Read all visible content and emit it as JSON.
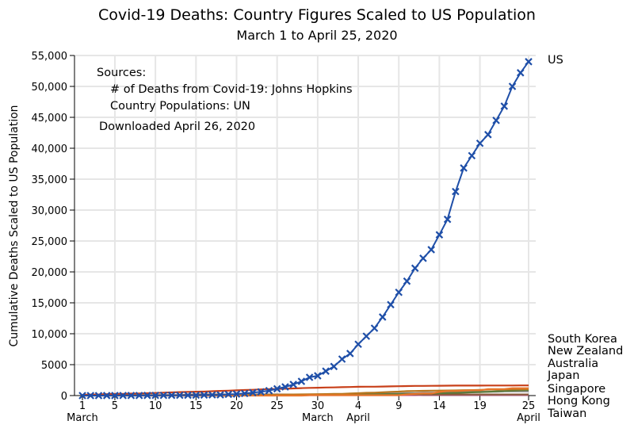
{
  "chart_data": {
    "type": "line",
    "title": "Covid-19 Deaths:  Country Figures Scaled to US Population",
    "subtitle": "March 1 to April 25, 2020",
    "xlabel": "",
    "ylabel": "Cumulative Deaths Scaled to US Population",
    "ylim": [
      0,
      55000
    ],
    "xlim_days": [
      1,
      56
    ],
    "grid": true,
    "y_ticks": [
      {
        "value": 0,
        "label": "0"
      },
      {
        "value": 5000,
        "label": "5000"
      },
      {
        "value": 10000,
        "label": "10,000"
      },
      {
        "value": 15000,
        "label": "15,000"
      },
      {
        "value": 20000,
        "label": "20,000"
      },
      {
        "value": 25000,
        "label": "25,000"
      },
      {
        "value": 30000,
        "label": "30,000"
      },
      {
        "value": 35000,
        "label": "35,000"
      },
      {
        "value": 40000,
        "label": "40,000"
      },
      {
        "value": 45000,
        "label": "45,000"
      },
      {
        "value": 50000,
        "label": "50,000"
      },
      {
        "value": 55000,
        "label": "55,000"
      }
    ],
    "x_ticks": [
      {
        "day": 1,
        "label": "1",
        "sublabel": "March"
      },
      {
        "day": 5,
        "label": "5",
        "sublabel": ""
      },
      {
        "day": 10,
        "label": "10",
        "sublabel": ""
      },
      {
        "day": 15,
        "label": "15",
        "sublabel": ""
      },
      {
        "day": 20,
        "label": "20",
        "sublabel": ""
      },
      {
        "day": 25,
        "label": "25",
        "sublabel": ""
      },
      {
        "day": 30,
        "label": "30",
        "sublabel": "March"
      },
      {
        "day": 35,
        "label": "4",
        "sublabel": "April"
      },
      {
        "day": 40,
        "label": "9",
        "sublabel": ""
      },
      {
        "day": 45,
        "label": "14",
        "sublabel": ""
      },
      {
        "day": 50,
        "label": "19",
        "sublabel": ""
      },
      {
        "day": 56,
        "label": "25",
        "sublabel": "April"
      }
    ],
    "annotations": {
      "sources_heading": "Sources:",
      "source_deaths": "# of Deaths from Covid-19:  Johns Hopkins",
      "source_population": "Country Populations:  UN",
      "downloaded": "Downloaded April 26, 2020"
    },
    "legend_placement": "right-end-labels",
    "series": [
      {
        "name": "US",
        "color": "#1f4fa8",
        "marker": "x",
        "values": [
          1,
          1,
          3,
          9,
          11,
          12,
          15,
          19,
          22,
          28,
          36,
          40,
          47,
          54,
          63,
          85,
          108,
          118,
          200,
          250,
          340,
          470,
          600,
          800,
          1100,
          1400,
          1800,
          2300,
          2950,
          3200,
          3950,
          4700,
          5900,
          6800,
          8300,
          9600,
          10900,
          12700,
          14700,
          16700,
          18500,
          20600,
          22200,
          23600,
          26000,
          28500,
          33000,
          36800,
          38800,
          40800,
          42200,
          44500,
          46800,
          50000,
          52200,
          54000
        ]
      },
      {
        "name": "South Korea",
        "color": "#c8401a",
        "marker": "none",
        "values": [
          110,
          170,
          180,
          225,
          270,
          280,
          320,
          350,
          380,
          420,
          480,
          510,
          560,
          600,
          630,
          640,
          700,
          750,
          800,
          850,
          900,
          940,
          1000,
          1050,
          1070,
          1100,
          1150,
          1200,
          1250,
          1270,
          1310,
          1320,
          1360,
          1390,
          1420,
          1430,
          1440,
          1460,
          1490,
          1510,
          1540,
          1560,
          1570,
          1580,
          1590,
          1600,
          1610,
          1610,
          1620,
          1620,
          1630,
          1630,
          1630,
          1630,
          1640,
          1640
        ]
      },
      {
        "name": "New Zealand",
        "color": "#e8762a",
        "marker": "none",
        "values": [
          0,
          0,
          0,
          0,
          0,
          0,
          0,
          0,
          0,
          0,
          0,
          0,
          0,
          0,
          0,
          0,
          0,
          0,
          0,
          0,
          0,
          0,
          0,
          0,
          0,
          0,
          0,
          0,
          66,
          66,
          66,
          66,
          66,
          66,
          66,
          66,
          66,
          66,
          66,
          66,
          198,
          264,
          330,
          330,
          594,
          726,
          726,
          792,
          858,
          858,
          1056,
          1056,
          1056,
          1188,
          1188,
          1188
        ]
      },
      {
        "name": "Australia",
        "color": "#b8761e",
        "marker": "none",
        "values": [
          13,
          13,
          13,
          13,
          26,
          26,
          26,
          39,
          39,
          39,
          39,
          39,
          39,
          65,
          65,
          65,
          65,
          65,
          78,
          78,
          91,
          91,
          91,
          104,
          117,
          169,
          182,
          195,
          208,
          234,
          247,
          273,
          286,
          351,
          390,
          455,
          468,
          520,
          598,
          637,
          715,
          741,
          767,
          793,
          806,
          819,
          832,
          871,
          884,
          923,
          962,
          975,
          988,
          1001,
          1014,
          1027
        ]
      },
      {
        "name": "Japan",
        "color": "#5a7a3a",
        "marker": "none",
        "values": [
          16,
          16,
          16,
          16,
          16,
          16,
          16,
          18,
          18,
          18,
          26,
          26,
          29,
          36,
          36,
          36,
          47,
          62,
          73,
          86,
          86,
          91,
          99,
          109,
          117,
          117,
          120,
          125,
          133,
          143,
          146,
          148,
          164,
          179,
          182,
          203,
          224,
          234,
          244,
          260,
          273,
          296,
          312,
          343,
          374,
          410,
          450,
          480,
          520,
          560,
          600,
          680,
          730,
          780,
          850,
          900
        ]
      },
      {
        "name": "Singapore",
        "color": "#8c8c8c",
        "marker": "none",
        "values": [
          0,
          0,
          0,
          0,
          0,
          0,
          0,
          0,
          0,
          0,
          0,
          0,
          0,
          0,
          0,
          0,
          0,
          0,
          0,
          0,
          114,
          114,
          114,
          114,
          114,
          114,
          114,
          114,
          171,
          171,
          171,
          171,
          171,
          171,
          228,
          285,
          342,
          342,
          342,
          342,
          399,
          399,
          456,
          456,
          456,
          513,
          570,
          570,
          627,
          627,
          627,
          627,
          684,
          684,
          684,
          684
        ]
      },
      {
        "name": "Hong Kong",
        "color": "#8a5a3c",
        "marker": "none",
        "values": [
          88,
          88,
          88,
          88,
          88,
          88,
          88,
          88,
          88,
          88,
          88,
          88,
          88,
          132,
          176,
          176,
          176,
          176,
          176,
          176,
          176,
          176,
          176,
          176,
          176,
          176,
          176,
          176,
          176,
          176,
          176,
          176,
          176,
          176,
          176,
          176,
          176,
          176,
          176,
          176,
          176,
          176,
          176,
          176,
          176,
          176,
          176,
          176,
          176,
          176,
          176,
          176,
          176,
          176,
          176,
          176
        ]
      },
      {
        "name": "Taiwan",
        "color": "#d0609a",
        "marker": "none",
        "values": [
          14,
          14,
          14,
          14,
          14,
          14,
          14,
          14,
          14,
          14,
          14,
          14,
          14,
          14,
          14,
          14,
          14,
          14,
          14,
          28,
          28,
          28,
          28,
          28,
          28,
          28,
          42,
          56,
          70,
          70,
          70,
          70,
          70,
          70,
          70,
          70,
          70,
          70,
          70,
          70,
          70,
          70,
          84,
          84,
          84,
          84,
          84,
          84,
          84,
          84,
          84,
          84,
          84,
          84,
          84,
          84
        ]
      }
    ],
    "end_labels": [
      "US",
      "South Korea",
      "New Zealand",
      "Australia",
      "Japan",
      "Singapore",
      "Hong Kong",
      "Taiwan"
    ]
  }
}
